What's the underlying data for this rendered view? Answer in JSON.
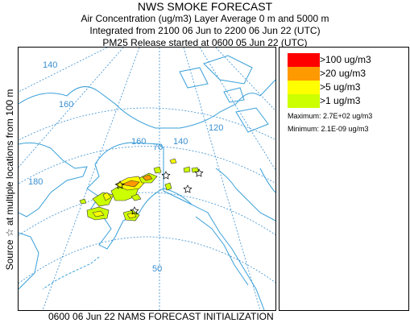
{
  "header": {
    "title": "NWS SMOKE FORECAST",
    "line2": "Air Concentration (ug/m3) Layer Average    0 m and  5000 m",
    "line3": "Integrated from 2100 06 Jun to 2200 06 Jun 22 (UTC)",
    "line4": "PM25 Release started at 0600 05 Jun 22 (UTC)"
  },
  "side_label": "Source ☆   at multiple locations     from   100 m",
  "map": {
    "grid_labels": [
      "140",
      "160",
      "180",
      "160",
      "140",
      "120",
      "70",
      "50"
    ],
    "colors": {
      "coast": "#3aa0d8",
      "grid": "#3a8fd0",
      "land": "#ffffff"
    }
  },
  "legend": {
    "items": [
      {
        "label": ">100 ug/m3",
        "color": "#ff0000"
      },
      {
        "label": ">20 ug/m3",
        "color": "#ff9900"
      },
      {
        "label": ">5 ug/m3",
        "color": "#ffff00"
      },
      {
        "label": ">1 ug/m3",
        "color": "#ccff00"
      }
    ],
    "maximum": "Maximum: 2.7E+02 ug/m3",
    "minimum": "Minimum: 2.1E-09 ug/m3"
  },
  "footer": "0600 06 Jun 22 NAMS FORECAST INITIALIZATION"
}
